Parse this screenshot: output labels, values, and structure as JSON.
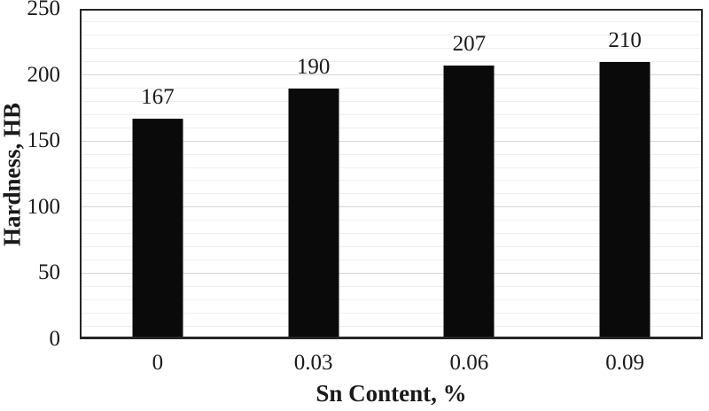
{
  "chart_data": {
    "type": "bar",
    "title": "",
    "categories": [
      "0",
      "0.03",
      "0.06",
      "0.09"
    ],
    "values": [
      167,
      190,
      207,
      210
    ],
    "xlabel": "Sn Content, %",
    "ylabel": "Hardness, HB",
    "ylim": [
      0,
      250
    ],
    "y_ticks": [
      0,
      50,
      100,
      150,
      200,
      250
    ],
    "minor_grid_step": 10,
    "major_grid_step": 50,
    "grid": true,
    "legend_position": "none",
    "data_labels": true,
    "bar_color": "#0a0a0a",
    "axis_color": "#262626",
    "major_grid_color": "#d6d6d6",
    "minor_grid_color": "#efefef",
    "background_color": "#ffffff"
  }
}
